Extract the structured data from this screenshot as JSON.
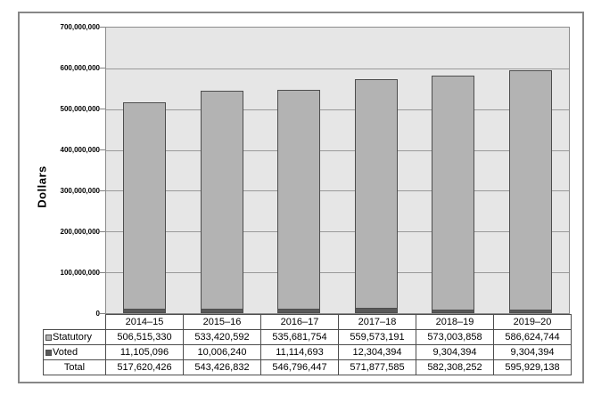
{
  "y_axis": {
    "title": "Dollars",
    "tick_labels": [
      "700,000,000",
      "600,000,000",
      "500,000,000",
      "400,000,000",
      "300,000,000",
      "200,000,000",
      "100,000,000",
      "0"
    ]
  },
  "chart_data": {
    "type": "bar",
    "stacked": true,
    "title": "",
    "xlabel": "",
    "ylabel": "Dollars",
    "ylim": [
      0,
      700000000
    ],
    "ytick_step": 100000000,
    "grid": "horizontal",
    "legend_position": "table-left",
    "categories": [
      "2014–15",
      "2015–16",
      "2016–17",
      "2017–18",
      "2018–19",
      "2019–20"
    ],
    "series": [
      {
        "name": "Statutory",
        "color": "#b3b3b3",
        "values": [
          506515330,
          533420592,
          535681754,
          559573191,
          573003858,
          586624744
        ],
        "display": [
          "506,515,330",
          "533,420,592",
          "535,681,754",
          "559,573,191",
          "573,003,858",
          "586,624,744"
        ]
      },
      {
        "name": "Voted",
        "color": "#595959",
        "values": [
          11105096,
          10006240,
          11114693,
          12304394,
          9304394,
          9304394
        ],
        "display": [
          "11,105,096",
          "10,006,240",
          "11,114,693",
          "12,304,394",
          "9,304,394",
          "9,304,394"
        ]
      }
    ],
    "totals": {
      "label": "Total",
      "values": [
        517620426,
        543426832,
        546796447,
        571877585,
        582308252,
        595929138
      ],
      "display": [
        "517,620,426",
        "543,426,832",
        "546,796,447",
        "571,877,585",
        "582,308,252",
        "595,929,138"
      ]
    }
  },
  "colors": {
    "statutory_fill": "#b3b3b3",
    "voted_fill": "#595959",
    "bar_border": "#4d4d4d",
    "plot_background": "#e6e6e6",
    "gridline": "#999999",
    "frame_border": "#878787",
    "table_border": "#4d4d4d"
  }
}
